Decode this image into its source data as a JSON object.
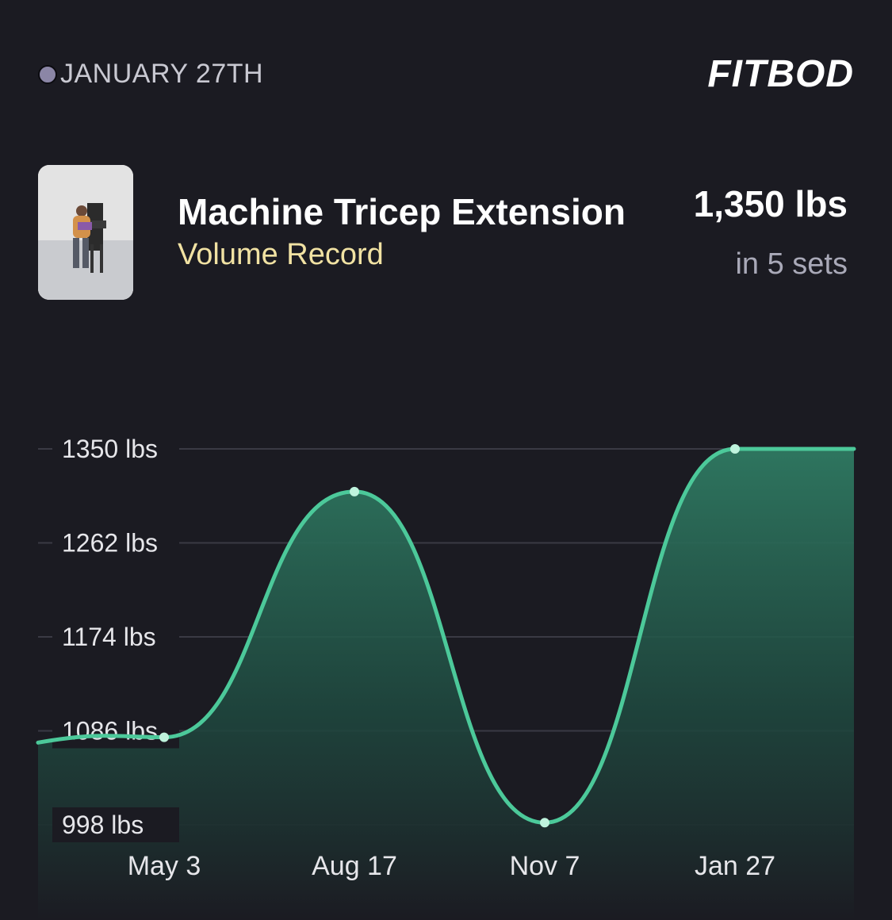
{
  "header": {
    "date": "JANUARY 27TH",
    "brand": "FITBOD"
  },
  "exercise": {
    "name": "Machine Tricep Extension",
    "record_type": "Volume Record",
    "record_value": "1,350 lbs",
    "record_sets": "in 5 sets"
  },
  "colors": {
    "background": "#1b1b22",
    "line": "#4cc99a",
    "fill_top": "#2f7a62",
    "subtitle": "#f1e2a3"
  },
  "chart_data": {
    "type": "area",
    "x": [
      "May 3",
      "Aug 17",
      "Nov 7",
      "Jan 27"
    ],
    "values": [
      1080,
      1310,
      1000,
      1350
    ],
    "ylim": [
      998,
      1350
    ],
    "y_ticks": [
      1350,
      1262,
      1174,
      1086,
      998
    ],
    "y_tick_labels": [
      "1350 lbs",
      "1262  lbs",
      "1174  lbs",
      "1086  lbs",
      "998 lbs"
    ],
    "x_tick_labels": [
      "May 3",
      "Aug 17",
      "Nov 7",
      "Jan 27"
    ],
    "grid": true,
    "legend": "none"
  }
}
